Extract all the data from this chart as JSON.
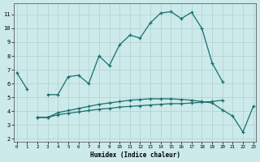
{
  "xlabel": "Humidex (Indice chaleur)",
  "x": [
    0,
    1,
    2,
    3,
    4,
    5,
    6,
    7,
    8,
    9,
    10,
    11,
    12,
    13,
    14,
    15,
    16,
    17,
    18,
    19,
    20,
    21,
    22,
    23
  ],
  "line_main": [
    6.8,
    5.6,
    null,
    5.2,
    5.2,
    6.5,
    6.6,
    6.0,
    8.0,
    7.3,
    8.8,
    9.5,
    9.3,
    10.4,
    11.1,
    11.2,
    10.7,
    11.15,
    10.0,
    7.5,
    6.15,
    null,
    null,
    null
  ],
  "line_right": [
    null,
    null,
    null,
    null,
    null,
    null,
    null,
    null,
    null,
    null,
    null,
    null,
    null,
    null,
    null,
    null,
    null,
    null,
    null,
    null,
    null,
    null,
    null,
    null
  ],
  "line_mid": [
    null,
    null,
    3.55,
    3.55,
    3.9,
    4.05,
    4.2,
    4.35,
    4.5,
    4.6,
    4.7,
    4.8,
    4.85,
    4.9,
    4.9,
    4.9,
    4.85,
    4.8,
    4.7,
    4.6,
    4.1,
    3.65,
    2.5,
    4.35
  ],
  "line_low": [
    null,
    null,
    3.55,
    3.55,
    3.75,
    3.85,
    3.95,
    4.05,
    4.15,
    4.2,
    4.3,
    4.35,
    4.4,
    4.45,
    4.5,
    4.55,
    4.55,
    4.6,
    4.65,
    4.7,
    4.8,
    null,
    null,
    null
  ],
  "line_upper": [
    null,
    null,
    null,
    null,
    null,
    null,
    null,
    null,
    null,
    null,
    null,
    null,
    null,
    null,
    null,
    null,
    null,
    null,
    null,
    null,
    null,
    null,
    null,
    null
  ],
  "line_color": "#1a6e6e",
  "bg_color": "#cceaea",
  "grid_color": "#b0d0d0",
  "ylim": [
    1.8,
    11.8
  ],
  "xlim": [
    -0.3,
    23.3
  ],
  "yticks": [
    2,
    3,
    4,
    5,
    6,
    7,
    8,
    9,
    10,
    11
  ],
  "xticks": [
    0,
    1,
    2,
    3,
    4,
    5,
    6,
    7,
    8,
    9,
    10,
    11,
    12,
    13,
    14,
    15,
    16,
    17,
    18,
    19,
    20,
    21,
    22,
    23
  ]
}
